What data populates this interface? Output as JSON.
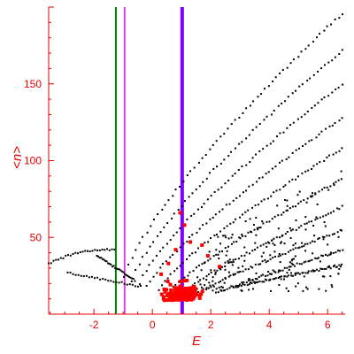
{
  "chart_data": {
    "type": "scatter",
    "xlabel": "E",
    "ylabel": "<n>",
    "xlim": [
      -3.55,
      6.6
    ],
    "ylim": [
      0,
      200
    ],
    "grid": false,
    "x_ticks": [
      -2,
      0,
      2,
      4,
      6
    ],
    "x_tick_labels": [
      "-2",
      "0",
      "2",
      "4",
      "6"
    ],
    "y_ticks": [
      50,
      100,
      150
    ],
    "y_tick_labels": [
      "50",
      "100",
      "150"
    ],
    "colors": {
      "axis": "#e60000",
      "points_black": "#000000",
      "points_red": "#ff0000",
      "line_green": "#008000",
      "line_magenta": "#e040e0",
      "line_purple": "#7a00ff"
    },
    "vertical_lines": [
      {
        "x": -1.25,
        "color": "#008000",
        "width": 2
      },
      {
        "x": -0.95,
        "color": "#e040e0",
        "width": 2
      },
      {
        "x": 1.02,
        "color": "#7a00ff",
        "width": 4
      }
    ],
    "series": [
      {
        "marker_color": "#000000",
        "marker": "dot",
        "bands": [
          {
            "x_start": -0.95,
            "x_end": 6.5,
            "y_start": 25,
            "y_end": 196,
            "curve": 0.78
          },
          {
            "x_start": -0.7,
            "x_end": 6.5,
            "y_start": 22,
            "y_end": 172,
            "curve": 0.78
          },
          {
            "x_start": -0.45,
            "x_end": 6.5,
            "y_start": 20,
            "y_end": 150,
            "curve": 0.8
          },
          {
            "x_start": -0.2,
            "x_end": 6.5,
            "y_start": 18,
            "y_end": 128,
            "curve": 0.82
          },
          {
            "x_start": 0.2,
            "x_end": 6.5,
            "y_start": 16,
            "y_end": 108,
            "curve": 0.82
          },
          {
            "x_start": 0.6,
            "x_end": 6.5,
            "y_start": 15,
            "y_end": 88,
            "curve": 0.85
          },
          {
            "x_start": 1.0,
            "x_end": 6.5,
            "y_start": 14,
            "y_end": 70,
            "curve": 0.88
          },
          {
            "x_start": 1.5,
            "x_end": 6.5,
            "y_start": 13,
            "y_end": 55,
            "curve": 0.9
          },
          {
            "x_start": 2.2,
            "x_end": 6.5,
            "y_start": 14,
            "y_end": 42,
            "curve": 0.95
          },
          {
            "x_start": 2.8,
            "x_end": 6.5,
            "y_start": 18,
            "y_end": 32,
            "curve": 1.0
          }
        ],
        "scatter_region": {
          "x": [
            1.5,
            6.5
          ],
          "y": [
            15,
            95
          ],
          "count": 170
        },
        "left_arm": {
          "upper": {
            "x_start": -3.55,
            "x_end": -1.3,
            "y_start": 33,
            "y_end": 42
          },
          "lower": {
            "x_start": -2.9,
            "x_end": -0.4,
            "y_start": 27,
            "y_end": 18
          },
          "tail": {
            "x_start": -1.9,
            "x_end": -0.6,
            "y_start": 38,
            "y_end": 22
          }
        }
      },
      {
        "marker_color": "#ff0000",
        "marker": "square",
        "cluster": {
          "center_x": 1.0,
          "center_y": 12,
          "spread_x": 0.55,
          "spread_y": 9,
          "count": 220
        },
        "outliers": [
          {
            "x": 0.95,
            "y": 66
          },
          {
            "x": 1.1,
            "y": 58
          },
          {
            "x": 1.7,
            "y": 45
          },
          {
            "x": 1.3,
            "y": 47
          },
          {
            "x": 0.8,
            "y": 42
          },
          {
            "x": 1.9,
            "y": 38
          },
          {
            "x": 0.55,
            "y": 33
          },
          {
            "x": 2.3,
            "y": 31
          },
          {
            "x": 0.3,
            "y": 26
          }
        ]
      }
    ]
  }
}
